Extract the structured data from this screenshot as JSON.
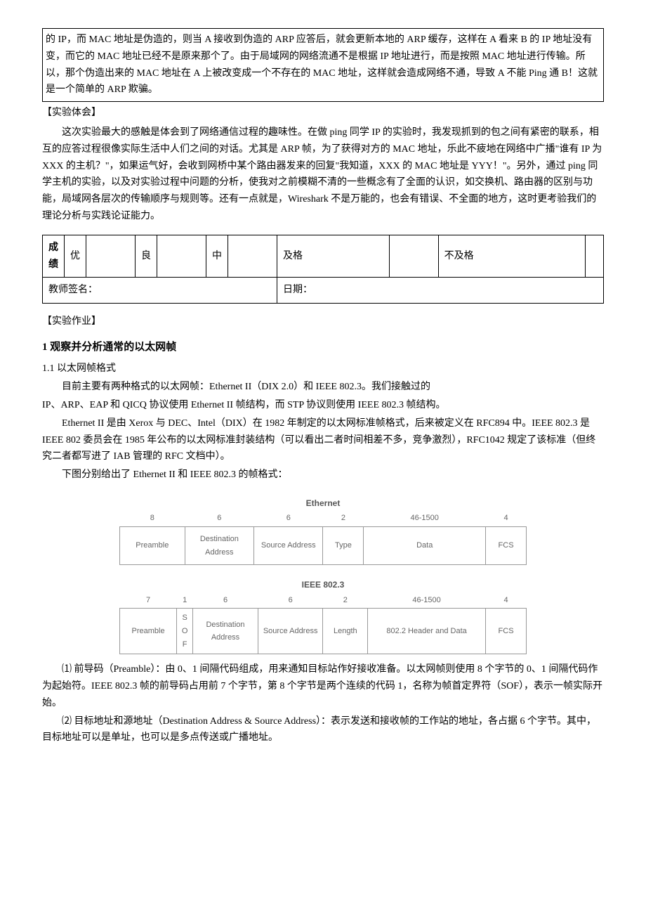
{
  "box1": {
    "text": "的 IP，而 MAC 地址是伪造的，则当 A 接收到伪造的 ARP 应答后，就会更新本地的 ARP 缓存，这样在 A 看来 B 的 IP 地址没有变，而它的 MAC 地址已经不是原来那个了。由于局域网的网络流通不是根据 IP 地址进行，而是按照 MAC 地址进行传输。所以，那个伪造出来的 MAC 地址在 A 上被改变成一个不存在的 MAC 地址，这样就会造成网络不通，导致 A 不能 Ping 通 B！这就是一个简单的 ARP 欺骗。"
  },
  "experience": {
    "label": "【实验体会】",
    "text": "这次实验最大的感触是体会到了网络通信过程的趣味性。在做 ping 同学 IP 的实验时，我发现抓到的包之间有紧密的联系，相互的应答过程很像实际生活中人们之间的对话。尤其是 ARP 帧，为了获得对方的 MAC 地址，乐此不疲地在网络中广播\"谁有 IP 为 XXX 的主机？\"，如果运气好，会收到网桥中某个路由器发来的回复\"我知道，XXX 的 MAC 地址是 YYY！\"。另外，通过 ping 同学主机的实验，以及对实验过程中问题的分析，使我对之前模糊不清的一些概念有了全面的认识，如交换机、路由器的区别与功能，局域网各层次的传输顺序与规则等。还有一点就是，Wireshark 不是万能的，也会有错误、不全面的地方，这时更考验我们的理论分析与实践论证能力。"
  },
  "grade": {
    "label": "成绩",
    "levels": [
      "优",
      "良",
      "中",
      "及格",
      "不及格"
    ],
    "teacher": "教师签名：",
    "date": "日期："
  },
  "homework": {
    "label": "【实验作业】"
  },
  "sec1": {
    "title": "1 观察并分析通常的以太网帧",
    "sub": "1.1 以太网帧格式",
    "p1": "目前主要有两种格式的以太网帧：Ethernet II（DIX 2.0）和 IEEE 802.3。我们接触过的",
    "p2": "IP、ARP、EAP 和 QICQ 协议使用 Ethernet II 帧结构，而 STP 协议则使用 IEEE 802.3 帧结构。",
    "p3": "Ethernet II 是由 Xerox 与 DEC、Intel（DIX）在 1982 年制定的以太网标准帧格式，后来被定义在 RFC894 中。IEEE 802.3 是 IEEE 802 委员会在 1985 年公布的以太网标准封装结构（可以看出二者时间相差不多，竞争激烈），RFC1042 规定了该标准（但终究二者都写进了 IAB 管理的 RFC 文档中）。",
    "p4": "下图分别给出了 Ethernet II 和 IEEE 802.3 的帧格式："
  },
  "ethernet": {
    "title": "Ethernet",
    "widths": [
      "8",
      "6",
      "6",
      "2",
      "46-1500",
      "4"
    ],
    "fields": [
      "Preamble",
      "Destination Address",
      "Source Address",
      "Type",
      "Data",
      "FCS"
    ],
    "col_pct": [
      16,
      17,
      17,
      10,
      30,
      10
    ]
  },
  "ieee": {
    "title": "IEEE 802.3",
    "widths": [
      "7",
      "1",
      "6",
      "6",
      "2",
      "46-1500",
      "4"
    ],
    "fields": [
      "Preamble",
      "S\nO\nF",
      "Destination Address",
      "Source Address",
      "Length",
      "802.2 Header and Data",
      "FCS"
    ],
    "col_pct": [
      14,
      4,
      16,
      16,
      11,
      29,
      10
    ]
  },
  "desc": {
    "item1": "⑴ 前导码（Preamble）：由 0、1 间隔代码组成，用来通知目标站作好接收准备。以太网帧则使用 8 个字节的 0、1 间隔代码作为起始符。IEEE 802.3 帧的前导码占用前 7 个字节，第 8 个字节是两个连续的代码 1，名称为帧首定界符（SOF），表示一帧实际开始。",
    "item2": "⑵ 目标地址和源地址（Destination Address & Source Address）：表示发送和接收帧的工作站的地址，各占据 6 个字节。其中，目标地址可以是单址，也可以是多点传送或广播地址。"
  }
}
